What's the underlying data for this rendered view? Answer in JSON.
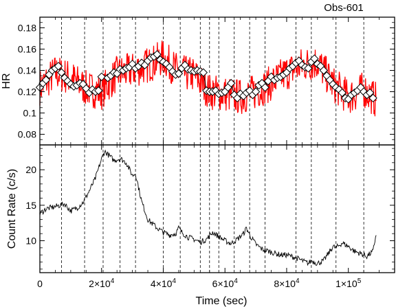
{
  "chart_data": [
    {
      "panel": "top",
      "type": "line",
      "title": "Obs-601",
      "ylabel": "HR",
      "ylim": [
        0.07,
        0.19
      ],
      "yticks": [
        0.08,
        0.1,
        0.12,
        0.14,
        0.16,
        0.18
      ],
      "ytick_labels": [
        "0.08",
        "0.1",
        "0.12",
        "0.14",
        "0.16",
        "0.18"
      ],
      "series": [
        {
          "color": "#ff0000",
          "style": "noisy-line",
          "x": [
            0,
            5000,
            10000,
            15000,
            20000,
            25000,
            30000,
            35000,
            40000,
            45000,
            50000,
            55000,
            60000,
            65000,
            70000,
            75000,
            80000,
            85000,
            90000,
            95000,
            100000,
            105000,
            109000
          ],
          "values": [
            0.124,
            0.138,
            0.133,
            0.123,
            0.12,
            0.137,
            0.14,
            0.145,
            0.152,
            0.138,
            0.136,
            0.12,
            0.118,
            0.115,
            0.12,
            0.128,
            0.138,
            0.145,
            0.148,
            0.127,
            0.115,
            0.122,
            0.112
          ]
        },
        {
          "color": "#ffffff",
          "style": "diamond-markers",
          "x": [
            0,
            1000,
            2000,
            3000,
            4000,
            5000,
            6000,
            7000,
            8000,
            9000,
            10000,
            11000,
            12000,
            13000,
            14000,
            15000,
            16000,
            17000,
            18000,
            19000,
            20000,
            22000,
            23000,
            24000,
            25000,
            26000,
            27000,
            28000,
            29000,
            30000,
            31000,
            32000,
            33000,
            34000,
            35000,
            36000,
            37000,
            38000,
            39000,
            40000,
            41000,
            42000,
            43000,
            44000,
            45000,
            46000,
            47000,
            48000,
            49000,
            50000,
            51000,
            52000,
            53000,
            54000,
            55000,
            56000,
            57000,
            58000,
            59000,
            60000,
            61000,
            62000,
            63000,
            64000,
            65000,
            66000,
            67000,
            68000,
            69000,
            70000,
            71000,
            72000,
            73000,
            74000,
            75000,
            76000,
            77000,
            78000,
            79000,
            80000,
            81000,
            82000,
            83000,
            84000,
            85000,
            86000,
            87000,
            88000,
            89000,
            90000,
            91000,
            92000,
            93000,
            94000,
            95000,
            96000,
            97000,
            98000,
            99000,
            100000,
            101000,
            102000,
            103000,
            104000,
            105000,
            106000,
            107000,
            108000
          ],
          "values": [
            0.124,
            0.128,
            0.131,
            0.136,
            0.14,
            0.142,
            0.144,
            0.138,
            0.133,
            0.13,
            0.127,
            0.125,
            0.126,
            0.128,
            0.127,
            0.123,
            0.119,
            0.122,
            0.12,
            0.121,
            0.134,
            0.133,
            0.135,
            0.138,
            0.137,
            0.141,
            0.14,
            0.142,
            0.143,
            0.146,
            0.142,
            0.144,
            0.147,
            0.145,
            0.149,
            0.152,
            0.153,
            0.155,
            0.15,
            0.148,
            0.146,
            0.143,
            0.139,
            0.136,
            0.137,
            0.142,
            0.145,
            0.141,
            0.14,
            0.139,
            0.14,
            0.139,
            0.138,
            0.121,
            0.12,
            0.12,
            0.121,
            0.118,
            0.119,
            0.12,
            0.124,
            0.128,
            0.117,
            0.114,
            0.118,
            0.116,
            0.119,
            0.121,
            0.117,
            0.12,
            0.126,
            0.128,
            0.124,
            0.13,
            0.134,
            0.131,
            0.133,
            0.134,
            0.136,
            0.138,
            0.142,
            0.144,
            0.147,
            0.149,
            0.145,
            0.143,
            0.142,
            0.148,
            0.151,
            0.146,
            0.144,
            0.14,
            0.135,
            0.131,
            0.127,
            0.124,
            0.122,
            0.119,
            0.114,
            0.113,
            0.117,
            0.119,
            0.121,
            0.124,
            0.12,
            0.117,
            0.119,
            0.114
          ]
        }
      ]
    },
    {
      "panel": "bottom",
      "type": "line",
      "xlabel": "Time (sec)",
      "ylabel": "Count Rate (c/s)",
      "xlim": [
        0,
        115000
      ],
      "ylim": [
        5.5,
        23.5
      ],
      "xticks": [
        0,
        20000,
        40000,
        60000,
        80000,
        100000
      ],
      "xtick_labels": [
        {
          "base": "0",
          "exp": ""
        },
        {
          "base": "2×10",
          "exp": "4"
        },
        {
          "base": "4×10",
          "exp": "4"
        },
        {
          "base": "6×10",
          "exp": "4"
        },
        {
          "base": "8×10",
          "exp": "4"
        },
        {
          "base": "1×10",
          "exp": "5"
        }
      ],
      "yticks": [
        10,
        15,
        20
      ],
      "ytick_labels": [
        "10",
        "15",
        "20"
      ],
      "series": [
        {
          "color": "#000000",
          "x": [
            0,
            2000,
            5000,
            8000,
            10000,
            12000,
            14000,
            16000,
            18000,
            20000,
            21000,
            22000,
            24000,
            26000,
            28000,
            30000,
            31000,
            33000,
            35000,
            38000,
            40000,
            42000,
            44000,
            45000,
            46000,
            48000,
            50000,
            52000,
            54000,
            56000,
            58000,
            60000,
            62000,
            64000,
            66000,
            67000,
            68000,
            70000,
            72000,
            75000,
            78000,
            80000,
            83000,
            85000,
            87000,
            88000,
            90000,
            92000,
            94000,
            95000,
            96000,
            98000,
            100000,
            102000,
            104000,
            106000,
            108000,
            109000
          ],
          "values": [
            13.8,
            14.5,
            14.8,
            15.2,
            14.2,
            14.6,
            15.4,
            17.0,
            18.8,
            21.5,
            22.6,
            22.2,
            21.3,
            21.6,
            21.0,
            19.2,
            19.5,
            15.5,
            13.0,
            11.8,
            11.2,
            10.8,
            11.0,
            11.8,
            11.2,
            10.5,
            10.2,
            9.8,
            10.2,
            11.2,
            10.6,
            10.0,
            9.6,
            10.2,
            11.0,
            11.8,
            10.8,
            9.5,
            8.8,
            8.4,
            8.0,
            8.0,
            7.6,
            7.2,
            6.8,
            7.2,
            6.8,
            7.2,
            8.5,
            9.2,
            9.0,
            9.7,
            9.2,
            8.5,
            8.2,
            7.8,
            8.5,
            11.0
          ]
        }
      ],
      "vlines": [
        7000,
        14500,
        20500,
        26000,
        31000,
        40000,
        45500,
        52000,
        55000,
        58000,
        63000,
        68000,
        73000,
        83000,
        88000,
        96000,
        105000
      ]
    }
  ]
}
